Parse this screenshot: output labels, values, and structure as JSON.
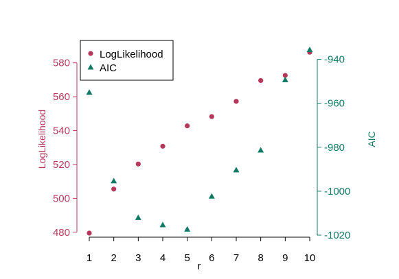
{
  "chart_data": {
    "type": "scatter",
    "x": [
      1,
      2,
      3,
      4,
      5,
      6,
      7,
      8,
      9,
      10
    ],
    "xlabel": "r",
    "x_ticks": [
      "1",
      "2",
      "3",
      "4",
      "5",
      "6",
      "7",
      "8",
      "9",
      "10"
    ],
    "xlim": [
      1,
      10
    ],
    "series": [
      {
        "name": "LogLikelihood",
        "axis": "left",
        "marker": "circle",
        "color": "#b5385c",
        "values": [
          479.5,
          505.5,
          520.3,
          530.8,
          542.8,
          548.3,
          557.3,
          569.6,
          572.6,
          586.3
        ]
      },
      {
        "name": "AIC",
        "axis": "right",
        "marker": "triangle",
        "color": "#117a65",
        "values": [
          -955.0,
          -995.3,
          -1012.0,
          -1015.3,
          -1017.3,
          -1002.3,
          -990.3,
          -981.3,
          -949.3,
          -935.6
        ]
      }
    ],
    "y_left": {
      "label": "LogLikelihood",
      "ticks": [
        "480",
        "500",
        "520",
        "540",
        "560",
        "580"
      ],
      "ylim": [
        478.3,
        589.2
      ],
      "color": "#b5385c"
    },
    "y_right": {
      "label": "AIC",
      "ticks": [
        "-940",
        "-960",
        "-980",
        "-1000",
        "-1020"
      ],
      "ylim": [
        -1020,
        -934.5
      ],
      "color": "#117a65"
    },
    "legend": {
      "placement": "top-left",
      "entries": [
        "LogLikelihood",
        "AIC"
      ]
    },
    "grid": false
  }
}
